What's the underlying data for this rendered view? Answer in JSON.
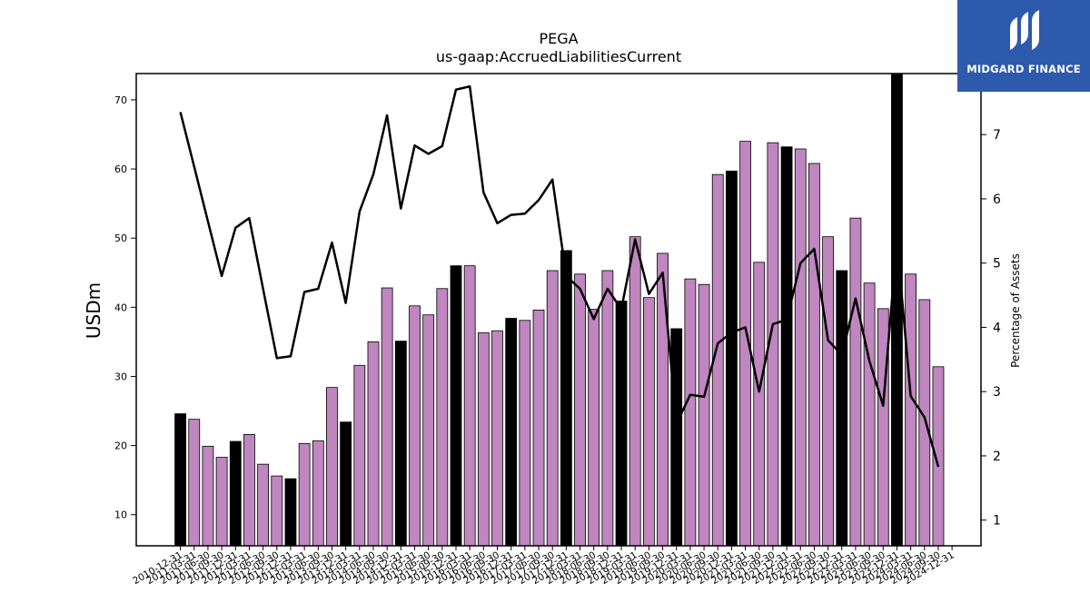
{
  "brand": {
    "name": "MIDGARD FINANCE",
    "colors": {
      "background": "#2e5aad",
      "text": "#ffffff"
    },
    "icon": "midgard-logo-icon"
  },
  "chart_data": {
    "type": "bar",
    "title": "PEGA",
    "subtitle": "us-gaap:AccruedLiabilitiesCurrent",
    "ylabel": "USDm",
    "y2label": "Percentage of Assets",
    "ylim": [
      5.5,
      73.8
    ],
    "y2lim": [
      0.6,
      7.95
    ],
    "yticks": [
      10,
      20,
      30,
      40,
      50,
      60,
      70
    ],
    "y2ticks": [
      1,
      2,
      3,
      4,
      5,
      6,
      7
    ],
    "grid": false,
    "colors": {
      "annual_bar": "#000000",
      "quarter_bar": "#bf86bf",
      "line": "#000000"
    },
    "categories": [
      "2010-12-31",
      "2011-03-31",
      "2011-06-30",
      "2011-09-30",
      "2011-12-31",
      "2012-03-31",
      "2012-06-30",
      "2012-09-30",
      "2012-12-31",
      "2013-03-31",
      "2013-06-30",
      "2013-09-30",
      "2013-12-31",
      "2014-03-31",
      "2014-06-30",
      "2014-09-30",
      "2014-12-31",
      "2015-03-31",
      "2015-06-30",
      "2015-09-30",
      "2015-12-31",
      "2016-03-31",
      "2016-06-30",
      "2016-09-30",
      "2016-12-31",
      "2017-03-31",
      "2017-06-30",
      "2017-09-30",
      "2017-12-31",
      "2018-03-31",
      "2018-06-30",
      "2018-09-30",
      "2018-12-31",
      "2019-03-31",
      "2019-06-30",
      "2019-09-30",
      "2019-12-31",
      "2020-03-31",
      "2020-06-30",
      "2020-09-30",
      "2020-12-31",
      "2021-03-31",
      "2021-06-30",
      "2021-09-30",
      "2021-12-31",
      "2022-03-31",
      "2022-06-30",
      "2022-09-30",
      "2022-12-31",
      "2023-03-31",
      "2023-06-30",
      "2023-09-30",
      "2023-12-31",
      "2024-03-31",
      "2024-06-30",
      "2024-09-30",
      "2024-12-31"
    ],
    "series": [
      {
        "kind": "bar",
        "axis": "left",
        "values": [
          24.6,
          23.8,
          19.9,
          18.3,
          20.6,
          21.6,
          17.3,
          15.6,
          15.2,
          20.3,
          20.7,
          28.4,
          23.4,
          31.6,
          35.0,
          42.8,
          35.1,
          40.2,
          38.9,
          42.7,
          46.0,
          46.0,
          36.3,
          36.6,
          38.4,
          38.1,
          39.6,
          45.3,
          48.2,
          44.8,
          39.7,
          45.3,
          40.9,
          50.2,
          41.4,
          47.8,
          36.9,
          44.1,
          43.3,
          59.2,
          59.7,
          64.0,
          46.5,
          63.8,
          63.2,
          62.9,
          60.8,
          50.2,
          45.3,
          52.9,
          43.5,
          39.8,
          73.8,
          44.8,
          41.1,
          31.4,
          null
        ]
      },
      {
        "kind": "line",
        "axis": "right",
        "values": [
          7.35,
          6.5,
          5.65,
          4.8,
          5.55,
          5.7,
          4.6,
          3.52,
          3.55,
          4.55,
          4.6,
          5.32,
          4.38,
          5.8,
          6.38,
          7.3,
          5.85,
          6.83,
          6.7,
          6.82,
          7.7,
          7.75,
          6.1,
          5.62,
          5.75,
          5.77,
          5.98,
          6.3,
          4.8,
          4.6,
          4.13,
          4.6,
          4.28,
          5.37,
          4.52,
          4.85,
          2.5,
          2.95,
          2.92,
          3.75,
          3.92,
          4.0,
          3.0,
          4.05,
          4.12,
          5.0,
          5.22,
          3.8,
          3.57,
          4.45,
          3.48,
          2.78,
          5.35,
          2.93,
          2.6,
          1.83,
          null
        ]
      }
    ]
  }
}
